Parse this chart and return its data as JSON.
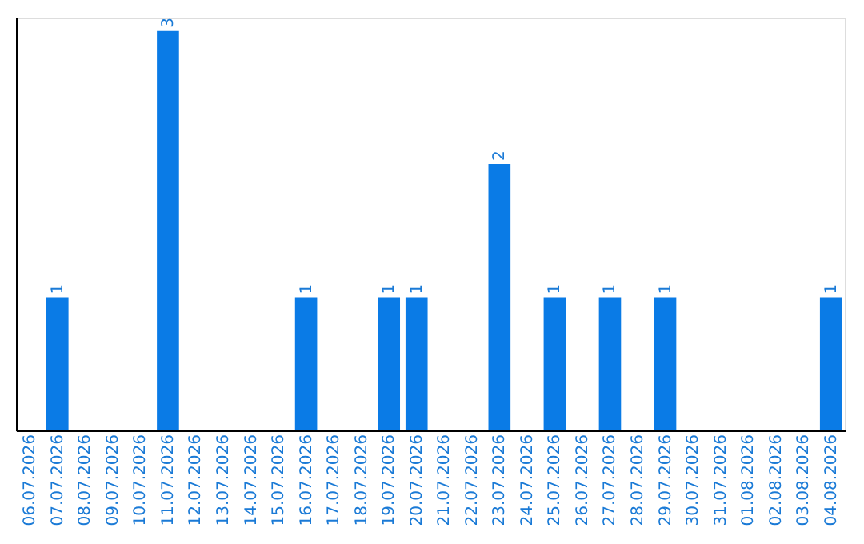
{
  "chart_data": {
    "type": "bar",
    "categories": [
      "06.07.2026",
      "07.07.2026",
      "08.07.2026",
      "09.07.2026",
      "10.07.2026",
      "11.07.2026",
      "12.07.2026",
      "13.07.2026",
      "14.07.2026",
      "15.07.2026",
      "16.07.2026",
      "17.07.2026",
      "18.07.2026",
      "19.07.2026",
      "20.07.2026",
      "21.07.2026",
      "22.07.2026",
      "23.07.2026",
      "24.07.2026",
      "25.07.2026",
      "26.07.2026",
      "27.07.2026",
      "28.07.2026",
      "29.07.2026",
      "30.07.2026",
      "31.07.2026",
      "01.08.2026",
      "02.08.2026",
      "03.08.2026",
      "04.08.2026"
    ],
    "values": [
      0,
      1,
      0,
      0,
      0,
      3,
      0,
      0,
      0,
      0,
      1,
      0,
      0,
      1,
      1,
      0,
      0,
      2,
      0,
      1,
      0,
      1,
      0,
      1,
      0,
      0,
      0,
      0,
      0,
      1
    ],
    "value_labels": [
      null,
      "1",
      null,
      null,
      null,
      "3",
      null,
      null,
      null,
      null,
      "1",
      null,
      null,
      "1",
      "1",
      null,
      null,
      "2",
      null,
      "1",
      null,
      "1",
      null,
      "1",
      null,
      null,
      null,
      null,
      null,
      "1"
    ],
    "color": "#0a7be6",
    "ylim": [
      0,
      3.1
    ],
    "tick_labels": "x"
  }
}
